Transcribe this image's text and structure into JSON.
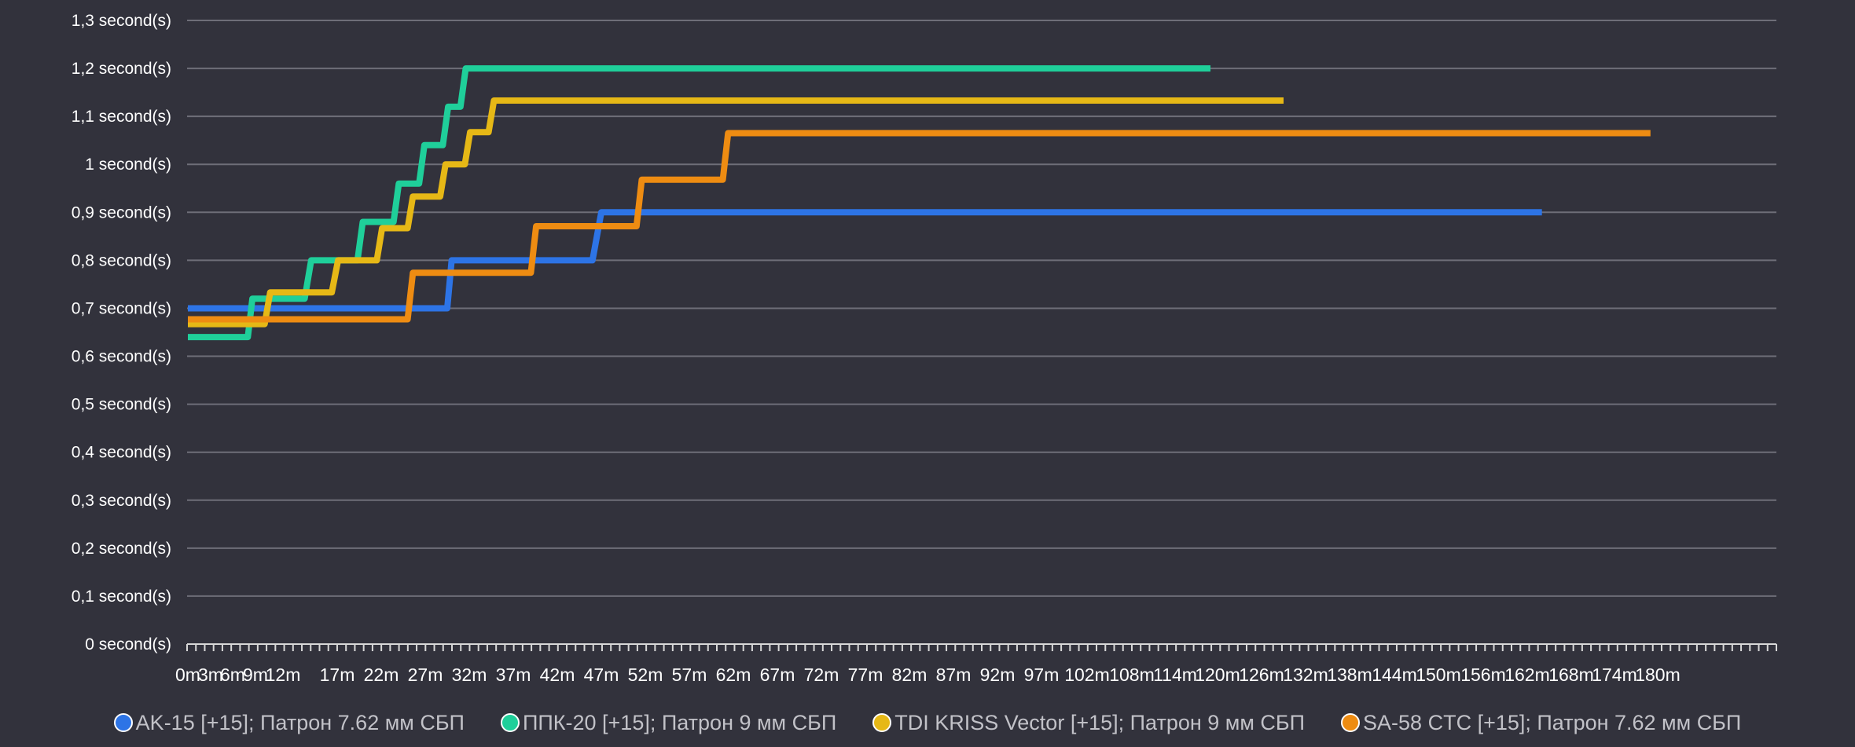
{
  "chart_data": {
    "type": "line",
    "title": "",
    "xlabel": "",
    "ylabel": "",
    "ylim": [
      0,
      1.3
    ],
    "y_ticks": [
      {
        "value": 0,
        "label": "0 second(s)"
      },
      {
        "value": 0.1,
        "label": "0,1 second(s)"
      },
      {
        "value": 0.2,
        "label": "0,2 second(s)"
      },
      {
        "value": 0.3,
        "label": "0,3 second(s)"
      },
      {
        "value": 0.4,
        "label": "0,4 second(s)"
      },
      {
        "value": 0.5,
        "label": "0,5 second(s)"
      },
      {
        "value": 0.6,
        "label": "0,6 second(s)"
      },
      {
        "value": 0.7,
        "label": "0,7 second(s)"
      },
      {
        "value": 0.8,
        "label": "0,8 second(s)"
      },
      {
        "value": 0.9,
        "label": "0,9 second(s)"
      },
      {
        "value": 1.0,
        "label": "1 second(s)"
      },
      {
        "value": 1.1,
        "label": "1,1 second(s)"
      },
      {
        "value": 1.2,
        "label": "1,2 second(s)"
      },
      {
        "value": 1.3,
        "label": "1,3 second(s)"
      }
    ],
    "x_tick_labels": [
      "0m",
      "3m",
      "6m",
      "9m",
      "12m",
      "17m",
      "22m",
      "27m",
      "32m",
      "37m",
      "42m",
      "47m",
      "52m",
      "57m",
      "62m",
      "67m",
      "72m",
      "77m",
      "82m",
      "87m",
      "92m",
      "97m",
      "102m",
      "108m",
      "114m",
      "120m",
      "126m",
      "132m",
      "138m",
      "144m",
      "150m",
      "156m",
      "162m",
      "168m",
      "174m",
      "180m"
    ],
    "grid": true,
    "legend_position": "bottom",
    "series": [
      {
        "name": "AK-15 [+15]; Патрон 7.62 мм СБП",
        "color": "#2d74e6",
        "points": [
          [
            0,
            0.7
          ],
          [
            29.5,
            0.7
          ],
          [
            30,
            0.8
          ],
          [
            46,
            0.8
          ],
          [
            47,
            0.9
          ],
          [
            164,
            0.9
          ]
        ]
      },
      {
        "name": "ППК-20 [+15]; Патрон 9 мм СБП",
        "color": "#1fcf9a",
        "points": [
          [
            0,
            0.64
          ],
          [
            8,
            0.64
          ],
          [
            8.6,
            0.72
          ],
          [
            14,
            0.72
          ],
          [
            14.6,
            0.8
          ],
          [
            19.3,
            0.8
          ],
          [
            19.9,
            0.88
          ],
          [
            23.4,
            0.88
          ],
          [
            24,
            0.96
          ],
          [
            26.3,
            0.96
          ],
          [
            26.9,
            1.04
          ],
          [
            29,
            1.04
          ],
          [
            29.6,
            1.12
          ],
          [
            31,
            1.12
          ],
          [
            31.6,
            1.2
          ],
          [
            119,
            1.2
          ]
        ]
      },
      {
        "name": "TDI KRISS Vector [+15]; Патрон 9 мм СБП",
        "color": "#e6b816",
        "points": [
          [
            0,
            0.667
          ],
          [
            10,
            0.667
          ],
          [
            10.6,
            0.733
          ],
          [
            16.5,
            0.733
          ],
          [
            17.1,
            0.8
          ],
          [
            21.5,
            0.8
          ],
          [
            22.1,
            0.867
          ],
          [
            25,
            0.867
          ],
          [
            25.6,
            0.933
          ],
          [
            28.7,
            0.933
          ],
          [
            29.3,
            1.0
          ],
          [
            31.5,
            1.0
          ],
          [
            32.1,
            1.067
          ],
          [
            34.2,
            1.067
          ],
          [
            34.8,
            1.133
          ],
          [
            129,
            1.133
          ]
        ]
      },
      {
        "name": "SA-58 CTC [+15]; Патрон 7.62 мм СБП",
        "color": "#ee8c12",
        "points": [
          [
            0,
            0.677
          ],
          [
            25,
            0.677
          ],
          [
            25.6,
            0.774
          ],
          [
            39,
            0.774
          ],
          [
            39.6,
            0.871
          ],
          [
            51,
            0.871
          ],
          [
            51.6,
            0.968
          ],
          [
            60.8,
            0.968
          ],
          [
            61.4,
            1.065
          ],
          [
            179,
            1.065
          ]
        ]
      }
    ]
  },
  "legend": {
    "items": [
      {
        "label": "AK-15 [+15]; Патрон 7.62 мм СБП",
        "color": "#2d74e6"
      },
      {
        "label": "ППК-20 [+15]; Патрон 9 мм СБП",
        "color": "#1fcf9a"
      },
      {
        "label": "TDI KRISS Vector [+15]; Патрон 9 мм СБП",
        "color": "#e6b816"
      },
      {
        "label": "SA-58 CTC [+15]; Патрон 7.62 мм СБП",
        "color": "#ee8c12"
      }
    ]
  }
}
